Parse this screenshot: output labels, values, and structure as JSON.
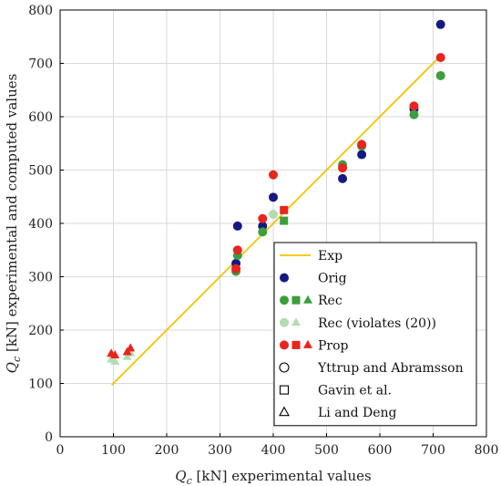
{
  "chart_data": {
    "type": "scatter",
    "xlabel": "Q_c [kN] experimental values",
    "ylabel": "Q_c [kN] experimental and computed values",
    "xlabel_parts": {
      "q": "Q",
      "sub": "c",
      "rest": " [kN] experimental values"
    },
    "ylabel_parts": {
      "q": "Q",
      "sub": "c",
      "rest": " [kN] experimental and computed values"
    },
    "xlim": [
      0,
      800
    ],
    "ylim": [
      0,
      800
    ],
    "xticks": [
      0,
      100,
      200,
      300,
      400,
      500,
      600,
      700,
      800
    ],
    "yticks": [
      0,
      100,
      200,
      300,
      400,
      500,
      600,
      700,
      800
    ],
    "grid": true,
    "legend_position": "bottom-right",
    "exp_line": {
      "name": "Exp",
      "color": "#f2c400",
      "points": [
        [
          97,
          97
        ],
        [
          714,
          714
        ]
      ]
    },
    "series": [
      {
        "name": "Orig",
        "color": "#141a80",
        "points": [
          {
            "x": 330,
            "y": 325,
            "shape": "circle"
          },
          {
            "x": 333,
            "y": 395,
            "shape": "circle"
          },
          {
            "x": 380,
            "y": 395,
            "shape": "circle"
          },
          {
            "x": 400,
            "y": 449,
            "shape": "circle"
          },
          {
            "x": 530,
            "y": 484,
            "shape": "circle"
          },
          {
            "x": 566,
            "y": 529,
            "shape": "circle"
          },
          {
            "x": 664,
            "y": 614,
            "shape": "circle"
          },
          {
            "x": 714,
            "y": 773,
            "shape": "circle"
          }
        ]
      },
      {
        "name": "Rec",
        "color": "#3c9e3c",
        "points": [
          {
            "x": 330,
            "y": 310,
            "shape": "circle"
          },
          {
            "x": 333,
            "y": 340,
            "shape": "circle"
          },
          {
            "x": 380,
            "y": 384,
            "shape": "circle"
          },
          {
            "x": 420,
            "y": 405,
            "shape": "square"
          },
          {
            "x": 530,
            "y": 510,
            "shape": "circle"
          },
          {
            "x": 566,
            "y": 545,
            "shape": "circle"
          },
          {
            "x": 664,
            "y": 604,
            "shape": "circle"
          },
          {
            "x": 714,
            "y": 677,
            "shape": "circle"
          }
        ]
      },
      {
        "name": "Rec (violates (20))",
        "color": "#b4dcb4",
        "points": [
          {
            "x": 96,
            "y": 145,
            "shape": "triangle"
          },
          {
            "x": 103,
            "y": 141,
            "shape": "triangle"
          },
          {
            "x": 126,
            "y": 150,
            "shape": "triangle"
          },
          {
            "x": 132,
            "y": 157,
            "shape": "triangle"
          },
          {
            "x": 400,
            "y": 417,
            "shape": "circle"
          }
        ]
      },
      {
        "name": "Prop",
        "color": "#e8251e",
        "points": [
          {
            "x": 96,
            "y": 156,
            "shape": "triangle"
          },
          {
            "x": 103,
            "y": 153,
            "shape": "triangle"
          },
          {
            "x": 126,
            "y": 159,
            "shape": "triangle"
          },
          {
            "x": 132,
            "y": 166,
            "shape": "triangle"
          },
          {
            "x": 330,
            "y": 315,
            "shape": "circle"
          },
          {
            "x": 333,
            "y": 350,
            "shape": "circle"
          },
          {
            "x": 380,
            "y": 409,
            "shape": "circle"
          },
          {
            "x": 400,
            "y": 491,
            "shape": "circle"
          },
          {
            "x": 420,
            "y": 425,
            "shape": "square"
          },
          {
            "x": 530,
            "y": 504,
            "shape": "circle"
          },
          {
            "x": 566,
            "y": 548,
            "shape": "circle"
          },
          {
            "x": 664,
            "y": 620,
            "shape": "circle"
          },
          {
            "x": 714,
            "y": 711,
            "shape": "circle"
          }
        ]
      }
    ],
    "legend": [
      {
        "label": "Exp",
        "marker": "line",
        "colors": [
          "#f2c400"
        ]
      },
      {
        "label": "Orig",
        "marker": "circles",
        "colors": [
          "#141a80"
        ]
      },
      {
        "label": "Rec",
        "marker": "circle-square-triangle",
        "colors": [
          "#3c9e3c"
        ]
      },
      {
        "label": "Rec (violates (20))",
        "marker": "circle-triangle",
        "colors": [
          "#b4dcb4"
        ]
      },
      {
        "label": "Prop",
        "marker": "circle-square-triangle",
        "colors": [
          "#e8251e"
        ]
      },
      {
        "label": "Yttrup and Abramsson",
        "marker": "open-circle",
        "colors": [
          "#000000"
        ]
      },
      {
        "label": "Gavin et al.",
        "marker": "open-square",
        "colors": [
          "#000000"
        ]
      },
      {
        "label": "Li and Deng",
        "marker": "open-triangle",
        "colors": [
          "#000000"
        ]
      }
    ]
  }
}
